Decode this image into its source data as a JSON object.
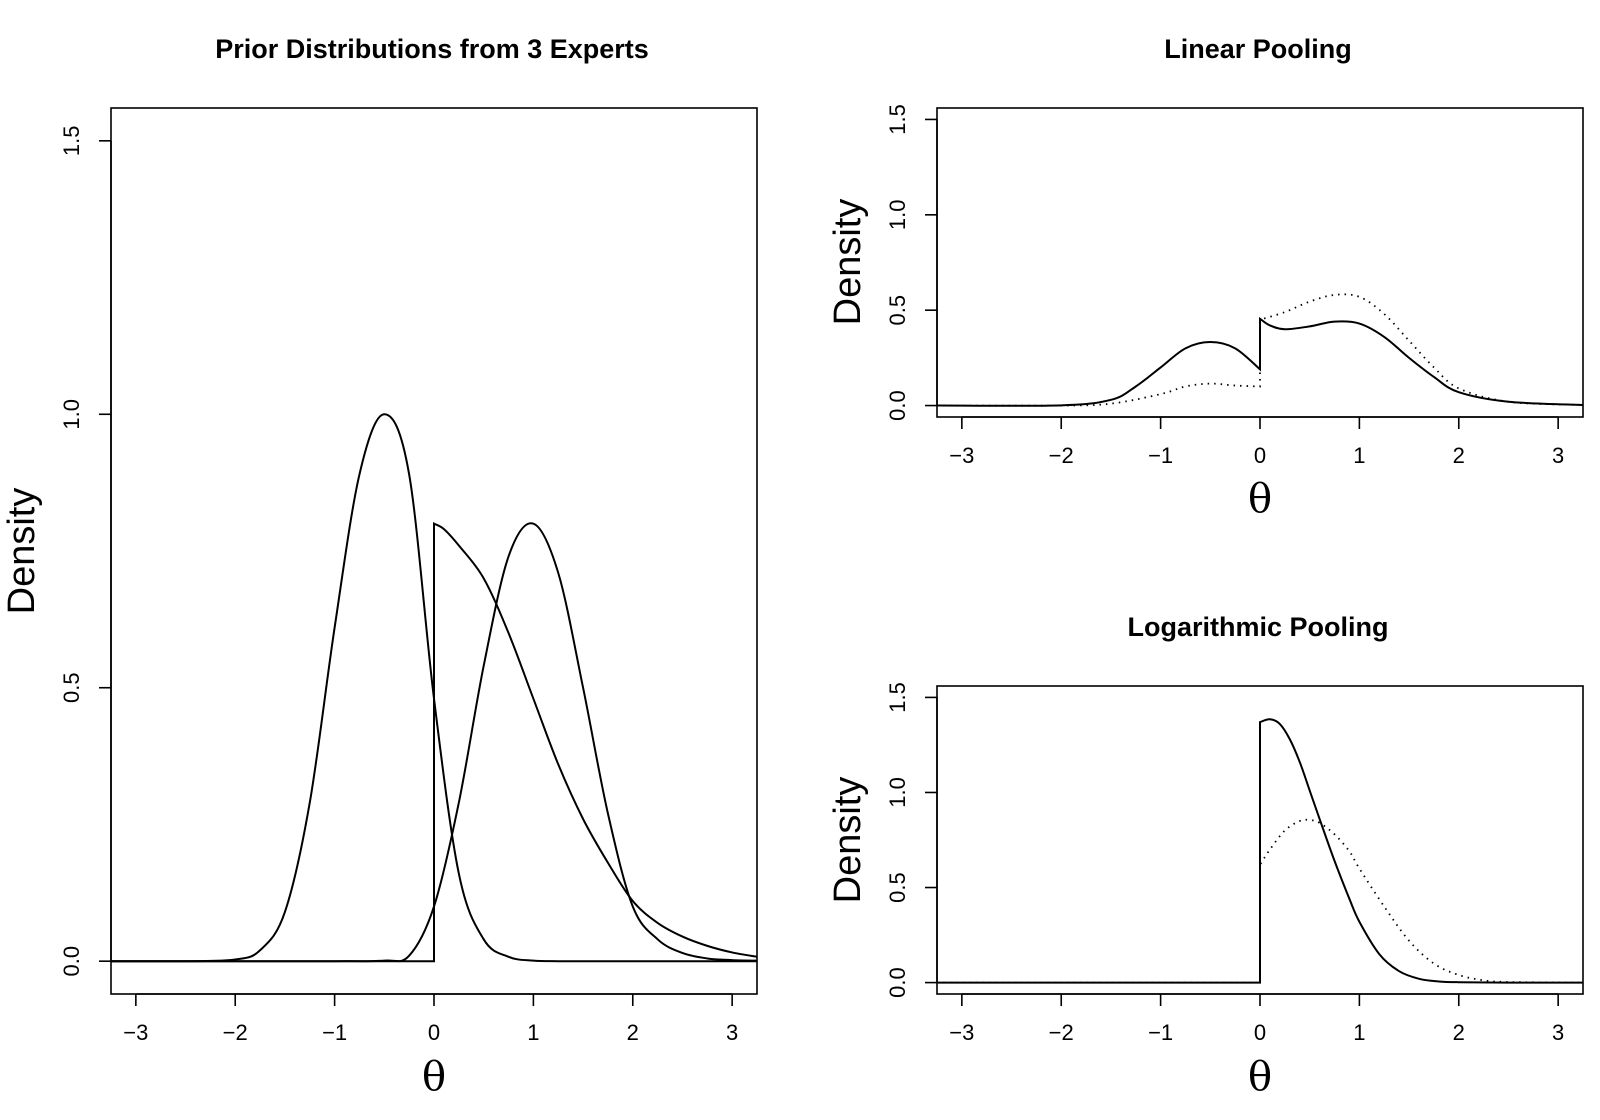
{
  "chart_data": [
    {
      "type": "line",
      "title": "Prior Distributions from 3 Experts",
      "xlabel": "θ",
      "ylabel": "Density",
      "xlim": [
        -3.25,
        3.25
      ],
      "ylim": [
        -0.06,
        1.56
      ],
      "xticks": [
        -3,
        -2,
        -1,
        0,
        1,
        2,
        3
      ],
      "xtick_labels": [
        "−3",
        "−2",
        "−1",
        "0",
        "1",
        "2",
        "3"
      ],
      "yticks": [
        0,
        0.5,
        1,
        1.5
      ],
      "ytick_labels": [
        "0.0",
        "0.5",
        "1.0",
        "1.5"
      ],
      "grid": false,
      "legend": "none",
      "series": [
        {
          "style": "solid",
          "x": [
            -3.25,
            -2.5,
            -2.0,
            -1.75,
            -1.5,
            -1.25,
            -1.0,
            -0.75,
            -0.5,
            -0.25,
            0.0,
            0.25,
            0.5,
            0.75,
            1.0,
            1.25,
            1.5,
            2.0,
            3.25
          ],
          "y": [
            0,
            0,
            0.003,
            0.02,
            0.09,
            0.29,
            0.61,
            0.89,
            1.0,
            0.89,
            0.48,
            0.16,
            0.04,
            0.008,
            0.001,
            0,
            0,
            0,
            0
          ]
        },
        {
          "style": "solid",
          "x": [
            -3.25,
            -1.0,
            -0.5,
            -0.25,
            0.0,
            0.25,
            0.5,
            0.75,
            1.0,
            1.25,
            1.5,
            1.75,
            2.0,
            2.25,
            2.5,
            2.75,
            3.0,
            3.25
          ],
          "y": [
            0,
            0,
            0.001,
            0.01,
            0.1,
            0.29,
            0.54,
            0.74,
            0.8,
            0.71,
            0.5,
            0.27,
            0.1,
            0.04,
            0.015,
            0.005,
            0.002,
            0.001
          ]
        },
        {
          "style": "solid",
          "x": [
            -3.25,
            0.0,
            0.0,
            0.1,
            0.25,
            0.5,
            0.75,
            1.0,
            1.25,
            1.5,
            1.75,
            2.0,
            2.25,
            2.5,
            2.75,
            3.0,
            3.25
          ],
          "y": [
            0,
            0,
            0.8,
            0.79,
            0.76,
            0.7,
            0.6,
            0.48,
            0.36,
            0.26,
            0.18,
            0.11,
            0.07,
            0.045,
            0.028,
            0.016,
            0.008
          ]
        }
      ]
    },
    {
      "type": "line",
      "title": "Linear Pooling",
      "xlabel": "θ",
      "ylabel": "Density",
      "xlim": [
        -3.25,
        3.25
      ],
      "ylim": [
        -0.06,
        1.56
      ],
      "xticks": [
        -3,
        -2,
        -1,
        0,
        1,
        2,
        3
      ],
      "xtick_labels": [
        "−3",
        "−2",
        "−1",
        "0",
        "1",
        "2",
        "3"
      ],
      "yticks": [
        0,
        0.5,
        1,
        1.5
      ],
      "ytick_labels": [
        "0.0",
        "0.5",
        "1.0",
        "1.5"
      ],
      "grid": false,
      "legend": "none",
      "series": [
        {
          "style": "solid",
          "x": [
            -3.25,
            -2.0,
            -1.5,
            -1.25,
            -1.0,
            -0.75,
            -0.5,
            -0.25,
            0.0,
            0.0,
            0.1,
            0.25,
            0.5,
            0.75,
            1.0,
            1.25,
            1.5,
            1.75,
            2.0,
            2.5,
            3.25
          ],
          "y": [
            0,
            0.001,
            0.03,
            0.1,
            0.2,
            0.3,
            0.333,
            0.3,
            0.19,
            0.455,
            0.42,
            0.4,
            0.415,
            0.44,
            0.43,
            0.36,
            0.25,
            0.15,
            0.07,
            0.02,
            0.003
          ]
        },
        {
          "style": "dotted",
          "x": [
            -3.25,
            -2.0,
            -1.5,
            -1.0,
            -0.75,
            -0.5,
            -0.25,
            0.0,
            0.0,
            0.25,
            0.5,
            0.75,
            1.0,
            1.25,
            1.5,
            1.75,
            2.0,
            2.5,
            3.25
          ],
          "y": [
            0,
            0,
            0.01,
            0.06,
            0.1,
            0.115,
            0.105,
            0.1,
            0.45,
            0.49,
            0.545,
            0.58,
            0.57,
            0.48,
            0.34,
            0.2,
            0.09,
            0.02,
            0.003
          ]
        }
      ]
    },
    {
      "type": "line",
      "title": "Logarithmic Pooling",
      "xlabel": "θ",
      "ylabel": "Density",
      "xlim": [
        -3.25,
        3.25
      ],
      "ylim": [
        -0.06,
        1.56
      ],
      "xticks": [
        -3,
        -2,
        -1,
        0,
        1,
        2,
        3
      ],
      "xtick_labels": [
        "−3",
        "−2",
        "−1",
        "0",
        "1",
        "2",
        "3"
      ],
      "yticks": [
        0,
        0.5,
        1,
        1.5
      ],
      "ytick_labels": [
        "0.0",
        "0.5",
        "1.0",
        "1.5"
      ],
      "grid": false,
      "legend": "none",
      "series": [
        {
          "style": "solid",
          "x": [
            -3.25,
            0.0,
            0.0,
            0.1,
            0.2,
            0.3,
            0.4,
            0.5,
            0.6,
            0.75,
            0.9,
            1.0,
            1.2,
            1.4,
            1.6,
            1.8,
            2.0,
            2.5,
            3.25
          ],
          "y": [
            0,
            0,
            1.37,
            1.385,
            1.36,
            1.28,
            1.16,
            1.01,
            0.86,
            0.64,
            0.44,
            0.32,
            0.15,
            0.06,
            0.02,
            0.006,
            0.002,
            0,
            0
          ]
        },
        {
          "style": "dotted",
          "x": [
            -3.25,
            0.0,
            0.0,
            0.1,
            0.25,
            0.4,
            0.5,
            0.6,
            0.75,
            0.9,
            1.0,
            1.25,
            1.5,
            1.75,
            2.0,
            2.25,
            2.5,
            3.25
          ],
          "y": [
            0,
            0,
            0.62,
            0.7,
            0.8,
            0.85,
            0.855,
            0.84,
            0.78,
            0.69,
            0.6,
            0.4,
            0.22,
            0.1,
            0.04,
            0.012,
            0.003,
            0
          ]
        }
      ]
    }
  ]
}
